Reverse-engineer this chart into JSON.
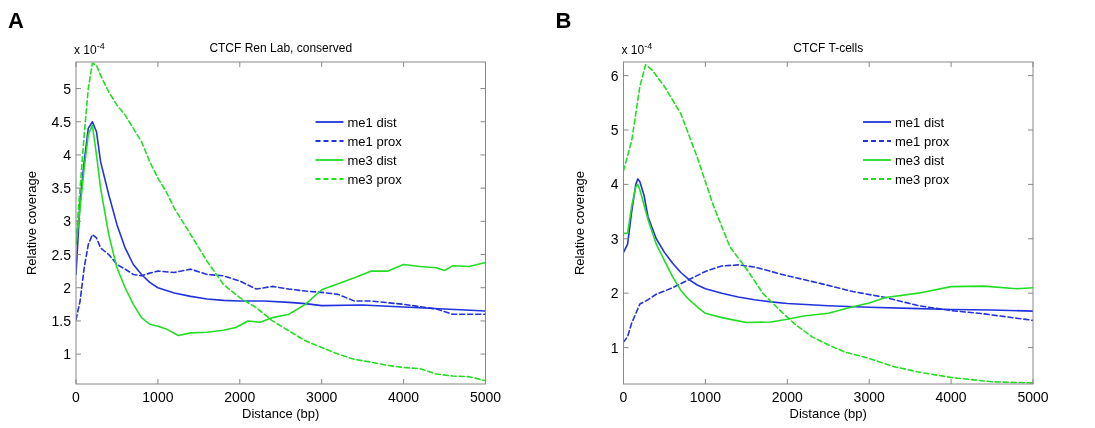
{
  "chart_data": [
    {
      "type": "line",
      "title": "CTCF Ren Lab, conserved",
      "xlabel": "Distance (bp)",
      "ylabel": "Relative coverage",
      "annotations": [
        "A",
        "x 10$^{-4}$"
      ],
      "xlim": [
        0,
        5000
      ],
      "xticks": [
        0,
        1000,
        2000,
        3000,
        4000,
        5000
      ],
      "ylim": [
        0.55,
        5.4
      ],
      "yticks": [
        1,
        1.5,
        2,
        2.5,
        3,
        3.5,
        4,
        4.5,
        5
      ],
      "legend": "top right",
      "series": [
        {
          "name": "me1 dist",
          "color": "#2233dd",
          "line_style": "solid",
          "x": [
            0,
            50,
            100,
            150,
            200,
            250,
            300,
            400,
            500,
            600,
            700,
            800,
            900,
            1000,
            1200,
            1400,
            1600,
            1800,
            2000,
            2300,
            2600,
            2800,
            3000,
            3500,
            4000,
            4500,
            5000
          ],
          "values": [
            2.2,
            3.3,
            3.9,
            4.4,
            4.5,
            4.35,
            3.9,
            3.4,
            2.95,
            2.6,
            2.35,
            2.2,
            2.08,
            2.0,
            1.92,
            1.87,
            1.83,
            1.81,
            1.8,
            1.8,
            1.78,
            1.76,
            1.73,
            1.74,
            1.71,
            1.68,
            1.65
          ]
        },
        {
          "name": "me1 prox",
          "color": "#2233dd",
          "line_style": "dashed",
          "x": [
            0,
            50,
            100,
            150,
            200,
            250,
            300,
            400,
            500,
            600,
            700,
            800,
            900,
            1000,
            1200,
            1400,
            1600,
            1800,
            2000,
            2200,
            2400,
            2600,
            2800,
            3000,
            3200,
            3400,
            3600,
            4000,
            4400,
            4600,
            5000
          ],
          "values": [
            1.52,
            1.8,
            2.3,
            2.65,
            2.8,
            2.75,
            2.6,
            2.5,
            2.35,
            2.28,
            2.2,
            2.18,
            2.22,
            2.25,
            2.23,
            2.28,
            2.2,
            2.18,
            2.1,
            1.98,
            2.02,
            1.98,
            1.95,
            1.93,
            1.9,
            1.8,
            1.8,
            1.75,
            1.68,
            1.6,
            1.6
          ]
        },
        {
          "name": "me3 dist",
          "color": "#22dd22",
          "line_style": "solid",
          "x": [
            0,
            50,
            100,
            150,
            200,
            250,
            300,
            400,
            500,
            600,
            700,
            800,
            900,
            1000,
            1100,
            1250,
            1400,
            1600,
            1800,
            1950,
            2100,
            2250,
            2400,
            2600,
            2800,
            3000,
            3200,
            3400,
            3600,
            3800,
            4000,
            4200,
            4400,
            4500,
            4600,
            4800,
            5000
          ],
          "values": [
            2.65,
            3.2,
            3.8,
            4.3,
            4.45,
            4.0,
            3.5,
            2.8,
            2.3,
            2.0,
            1.75,
            1.55,
            1.45,
            1.42,
            1.38,
            1.28,
            1.32,
            1.33,
            1.36,
            1.4,
            1.5,
            1.48,
            1.55,
            1.6,
            1.75,
            1.97,
            2.06,
            2.15,
            2.25,
            2.25,
            2.35,
            2.32,
            2.3,
            2.26,
            2.33,
            2.32,
            2.38
          ]
        },
        {
          "name": "me3 prox",
          "color": "#22dd22",
          "line_style": "dashed",
          "x": [
            0,
            50,
            100,
            150,
            200,
            250,
            300,
            400,
            500,
            600,
            700,
            800,
            900,
            1000,
            1100,
            1200,
            1400,
            1600,
            1800,
            2000,
            2200,
            2400,
            2600,
            2800,
            3000,
            3200,
            3400,
            3600,
            3800,
            4000,
            4200,
            4400,
            4600,
            4800,
            5000
          ],
          "values": [
            2.7,
            3.5,
            4.3,
            5.0,
            5.38,
            5.35,
            5.2,
            4.95,
            4.75,
            4.6,
            4.4,
            4.2,
            3.9,
            3.65,
            3.45,
            3.2,
            2.8,
            2.4,
            2.05,
            1.85,
            1.7,
            1.5,
            1.35,
            1.2,
            1.1,
            1.0,
            0.92,
            0.88,
            0.83,
            0.8,
            0.78,
            0.7,
            0.67,
            0.66,
            0.6
          ]
        }
      ]
    },
    {
      "type": "line",
      "title": "CTCF T-cells",
      "xlabel": "Distance (bp)",
      "ylabel": "Relative coverage",
      "annotations": [
        "B",
        "x 10$^{-4}$"
      ],
      "xlim": [
        0,
        5000
      ],
      "xticks": [
        0,
        1000,
        2000,
        3000,
        4000,
        5000
      ],
      "ylim": [
        0.33,
        6.25
      ],
      "yticks": [
        1,
        2,
        3,
        4,
        5,
        6
      ],
      "legend": "top right",
      "series": [
        {
          "name": "me1 dist",
          "color": "#2233dd",
          "line_style": "solid",
          "x": [
            0,
            50,
            100,
            150,
            175,
            200,
            250,
            300,
            400,
            500,
            600,
            700,
            800,
            900,
            1000,
            1200,
            1400,
            1600,
            1800,
            2000,
            2500,
            3000,
            3500,
            4000,
            4500,
            5000
          ],
          "values": [
            2.75,
            2.9,
            3.5,
            4.0,
            4.1,
            4.05,
            3.8,
            3.4,
            3.0,
            2.75,
            2.55,
            2.38,
            2.25,
            2.15,
            2.08,
            2.0,
            1.93,
            1.88,
            1.84,
            1.81,
            1.77,
            1.74,
            1.72,
            1.7,
            1.69,
            1.67
          ]
        },
        {
          "name": "me1 prox",
          "color": "#2233dd",
          "line_style": "dashed",
          "x": [
            0,
            50,
            100,
            200,
            300,
            400,
            600,
            800,
            1000,
            1200,
            1400,
            1600,
            1800,
            2000,
            2400,
            2800,
            3200,
            3600,
            4000,
            4400,
            4800,
            5000
          ],
          "values": [
            1.1,
            1.2,
            1.45,
            1.8,
            1.88,
            1.98,
            2.1,
            2.25,
            2.4,
            2.5,
            2.52,
            2.48,
            2.4,
            2.32,
            2.18,
            2.03,
            1.92,
            1.77,
            1.68,
            1.62,
            1.54,
            1.5
          ]
        },
        {
          "name": "me3 dist",
          "color": "#22dd22",
          "line_style": "solid",
          "x": [
            0,
            50,
            100,
            150,
            175,
            200,
            300,
            400,
            500,
            600,
            700,
            800,
            900,
            1000,
            1200,
            1400,
            1500,
            1800,
            2000,
            2200,
            2500,
            2800,
            3000,
            3200,
            3600,
            4000,
            4400,
            4800,
            5000
          ],
          "values": [
            3.1,
            3.1,
            3.6,
            3.95,
            4.0,
            3.9,
            3.35,
            2.9,
            2.6,
            2.3,
            2.05,
            1.88,
            1.75,
            1.63,
            1.55,
            1.49,
            1.46,
            1.47,
            1.52,
            1.58,
            1.63,
            1.75,
            1.82,
            1.92,
            2.0,
            2.12,
            2.13,
            2.08,
            2.1
          ]
        },
        {
          "name": "me3 prox",
          "color": "#22dd22",
          "line_style": "dashed",
          "x": [
            0,
            100,
            200,
            270,
            350,
            500,
            700,
            900,
            1100,
            1300,
            1500,
            1700,
            1900,
            2100,
            2300,
            2500,
            2700,
            3000,
            3300,
            3600,
            4000,
            4500,
            5000
          ],
          "values": [
            4.25,
            4.8,
            5.8,
            6.2,
            6.1,
            5.8,
            5.3,
            4.5,
            3.6,
            2.85,
            2.45,
            2.0,
            1.7,
            1.42,
            1.2,
            1.05,
            0.92,
            0.8,
            0.65,
            0.55,
            0.45,
            0.37,
            0.35
          ]
        }
      ]
    }
  ]
}
